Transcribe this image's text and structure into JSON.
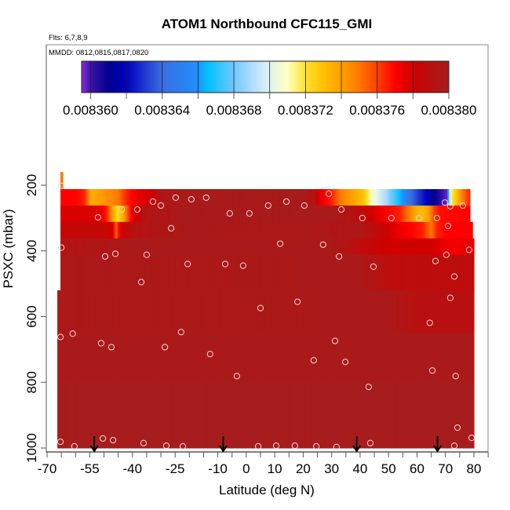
{
  "chart_data": {
    "type": "heatmap",
    "title": "ATOM1 Northbound CFC115_GMI",
    "flights_label": "Flts: 6,7,8,9",
    "dates_label": "MMDD: 0812,0815,0817,0820",
    "xlabel": "Latitude (deg N)",
    "ylabel": "PSXC (mbar)",
    "xlim": [
      -70,
      85
    ],
    "ylim": [
      1000,
      200
    ],
    "y_reversed": true,
    "x_tick_labels": [
      "-70",
      "-55",
      "-40",
      "-25",
      "-10",
      "0",
      "10",
      "20",
      "30",
      "40",
      "50",
      "60",
      "70",
      "80"
    ],
    "x_tick_values": [
      -70,
      -55,
      -40,
      -25,
      -10,
      0,
      10,
      20,
      30,
      40,
      50,
      60,
      70,
      80
    ],
    "x_minor_tick_step": 5,
    "y_tick_labels": [
      "200",
      "400",
      "600",
      "800",
      "1000"
    ],
    "y_tick_values": [
      200,
      400,
      600,
      800,
      1000
    ],
    "colorbar": {
      "range": [
        0.0083595,
        0.00838
      ],
      "tick_labels": [
        "0.008360",
        "0.008364",
        "0.008368",
        "0.008372",
        "0.008376",
        "0.008380"
      ],
      "tick_values": [
        0.00836,
        0.008364,
        0.008368,
        0.008372,
        0.008376,
        0.00838
      ],
      "segment_step": 2e-06,
      "placement": "top-inside"
    },
    "colorscale": [
      [
        0.0083595,
        "#8a2be2"
      ],
      [
        0.00836,
        "#3c14a8"
      ],
      [
        0.008361,
        "#000090"
      ],
      [
        0.008362,
        "#0000c0"
      ],
      [
        0.008364,
        "#3a6ee0"
      ],
      [
        0.008366,
        "#1e90ff"
      ],
      [
        0.0083665,
        "#00bfff"
      ],
      [
        0.008368,
        "#70c8ff"
      ],
      [
        0.008369,
        "#b0dcff"
      ],
      [
        0.00837,
        "#e0f4f0"
      ],
      [
        0.008371,
        "#ffffc0"
      ],
      [
        0.008372,
        "#ffe030"
      ],
      [
        0.008373,
        "#ffc000"
      ],
      [
        0.008374,
        "#ffa000"
      ],
      [
        0.008375,
        "#ff7800"
      ],
      [
        0.008376,
        "#ff4000"
      ],
      [
        0.008377,
        "#ff0000"
      ],
      [
        0.008378,
        "#d00000"
      ],
      [
        0.008379,
        "#b81010"
      ],
      [
        0.00838,
        "#a51e1e"
      ]
    ],
    "curtain_rows": [
      {
        "p_top": 160,
        "p_bottom": 212,
        "profile": [
          [
            -65.3,
            0.008375
          ],
          [
            -64.5,
            0.008375
          ]
        ]
      },
      {
        "p_top": 212,
        "p_bottom": 262,
        "profile": [
          [
            -65.3,
            0.008377
          ],
          [
            -60,
            0.008377
          ],
          [
            -57,
            0.0083765
          ],
          [
            -55.5,
            0.008375
          ],
          [
            -54.5,
            0.0083735
          ],
          [
            -52,
            0.008374
          ],
          [
            -48,
            0.0083745
          ],
          [
            -45,
            0.008375
          ],
          [
            -42,
            0.0083765
          ],
          [
            -38,
            0.0083775
          ],
          [
            -33,
            0.008378
          ],
          [
            -30,
            0.0083795
          ],
          [
            -20,
            0.0083798
          ],
          [
            20,
            0.0083798
          ],
          [
            24,
            0.008379
          ],
          [
            26,
            0.0083775
          ],
          [
            30,
            0.0083765
          ],
          [
            33,
            0.008375
          ],
          [
            37,
            0.008374
          ],
          [
            41,
            0.008373
          ],
          [
            44,
            0.008371
          ],
          [
            46,
            0.00837
          ],
          [
            49,
            0.008369
          ],
          [
            52,
            0.0083675
          ],
          [
            55,
            0.008366
          ],
          [
            58,
            0.008364
          ],
          [
            62,
            0.0083625
          ],
          [
            66,
            0.008361
          ],
          [
            69,
            0.00836
          ],
          [
            70.5,
            0.0083597
          ],
          [
            71,
            0.008367
          ],
          [
            72,
            0.0083715
          ],
          [
            74,
            0.008373
          ],
          [
            76,
            0.008375
          ],
          [
            78.6,
            0.0083765
          ]
        ]
      },
      {
        "p_top": 262,
        "p_bottom": 312,
        "profile": [
          [
            -65.3,
            0.0083778
          ],
          [
            -55,
            0.0083778
          ],
          [
            -51,
            0.0083775
          ],
          [
            -49,
            0.0083765
          ],
          [
            -47,
            0.008374
          ],
          [
            -45.2,
            0.0083721
          ],
          [
            -43.5,
            0.0083735
          ],
          [
            -41,
            0.0083765
          ],
          [
            -39.5,
            0.0083778
          ],
          [
            -36,
            0.0083792
          ],
          [
            -20,
            0.0083798
          ],
          [
            30,
            0.0083798
          ],
          [
            40,
            0.0083788
          ],
          [
            45,
            0.0083778
          ],
          [
            50,
            0.008377
          ],
          [
            54,
            0.0083765
          ],
          [
            57,
            0.008375
          ],
          [
            60,
            0.0083735
          ],
          [
            62,
            0.0083732
          ],
          [
            64,
            0.008374
          ],
          [
            66,
            0.008376
          ],
          [
            68,
            0.0083768
          ],
          [
            78.6,
            0.008377
          ]
        ]
      },
      {
        "p_top": 312,
        "p_bottom": 362,
        "profile": [
          [
            -65.3,
            0.0083785
          ],
          [
            -50,
            0.0083785
          ],
          [
            -47,
            0.008378
          ],
          [
            -46.3,
            0.0083765
          ],
          [
            -45.7,
            0.008375
          ],
          [
            -45,
            0.0083768
          ],
          [
            -43,
            0.0083785
          ],
          [
            -38,
            0.0083792
          ],
          [
            -20,
            0.0083797
          ],
          [
            40,
            0.0083795
          ],
          [
            47,
            0.0083785
          ],
          [
            53,
            0.0083775
          ],
          [
            58,
            0.008377
          ],
          [
            62,
            0.0083765
          ],
          [
            65,
            0.008375
          ],
          [
            67,
            0.0083765
          ],
          [
            70,
            0.008377
          ],
          [
            79.5,
            0.008377
          ]
        ]
      },
      {
        "p_top": 362,
        "p_bottom": 412,
        "profile": [
          [
            -65.3,
            0.0083792
          ],
          [
            -40,
            0.0083797
          ],
          [
            30,
            0.0083797
          ],
          [
            40,
            0.0083788
          ],
          [
            50,
            0.008378
          ],
          [
            65,
            0.008378
          ],
          [
            72,
            0.0083772
          ],
          [
            80,
            0.0083776
          ]
        ]
      },
      {
        "p_top": 412,
        "p_bottom": 520,
        "profile": [
          [
            -65.3,
            0.0083796
          ],
          [
            40,
            0.0083797
          ],
          [
            50,
            0.0083788
          ],
          [
            80,
            0.0083788
          ]
        ]
      },
      {
        "p_top": 520,
        "p_bottom": 650,
        "profile": [
          [
            -66.4,
            0.0083796
          ],
          [
            50,
            0.0083797
          ],
          [
            60,
            0.008379
          ],
          [
            80,
            0.008379
          ]
        ]
      },
      {
        "p_top": 650,
        "p_bottom": 800,
        "profile": [
          [
            -66.4,
            0.0083797
          ],
          [
            80,
            0.0083797
          ]
        ]
      },
      {
        "p_top": 800,
        "p_bottom": 1000,
        "profile": [
          [
            -66.4,
            0.0083799
          ],
          [
            80,
            0.0083799
          ]
        ]
      }
    ],
    "observation_points": [
      [
        -65.0,
        202
      ],
      [
        -52.1,
        298
      ],
      [
        -43.8,
        274
      ],
      [
        -38.3,
        274
      ],
      [
        -32.8,
        250
      ],
      [
        -30.0,
        262
      ],
      [
        -26.4,
        331
      ],
      [
        -24.8,
        238
      ],
      [
        -19.3,
        243
      ],
      [
        -14.1,
        238
      ],
      [
        -5.8,
        286
      ],
      [
        1.1,
        286
      ],
      [
        7.7,
        262
      ],
      [
        14.1,
        250
      ],
      [
        20.4,
        262
      ],
      [
        29.0,
        226
      ],
      [
        33.4,
        274
      ],
      [
        40.8,
        300
      ],
      [
        51.0,
        300
      ],
      [
        60.7,
        300
      ],
      [
        67.0,
        300
      ],
      [
        69.8,
        253
      ],
      [
        71.7,
        264
      ],
      [
        76.1,
        262
      ],
      [
        70.9,
        324
      ],
      [
        -65.0,
        390
      ],
      [
        -49.6,
        417
      ],
      [
        -46.0,
        409
      ],
      [
        -35.0,
        412
      ],
      [
        -36.9,
        495
      ],
      [
        -20.6,
        440
      ],
      [
        -7.4,
        440
      ],
      [
        -1.1,
        445
      ],
      [
        11.9,
        378
      ],
      [
        27.0,
        381
      ],
      [
        32.6,
        417
      ],
      [
        44.7,
        448
      ],
      [
        66.5,
        431
      ],
      [
        70.3,
        412
      ],
      [
        73.1,
        478
      ],
      [
        71.7,
        543
      ],
      [
        78.3,
        397
      ],
      [
        5.0,
        574
      ],
      [
        18.0,
        555
      ],
      [
        64.5,
        619
      ],
      [
        -65.3,
        662
      ],
      [
        -61.0,
        652
      ],
      [
        -51.0,
        681
      ],
      [
        -47.4,
        693
      ],
      [
        -28.6,
        693
      ],
      [
        -22.9,
        647
      ],
      [
        31.2,
        674
      ],
      [
        -12.7,
        714
      ],
      [
        23.7,
        733
      ],
      [
        34.8,
        738
      ],
      [
        -3.3,
        781
      ],
      [
        65.4,
        764
      ],
      [
        73.6,
        781
      ],
      [
        43.0,
        814
      ],
      [
        74.2,
        938
      ],
      [
        -65.3,
        981
      ],
      [
        -60.4,
        995
      ],
      [
        -50.4,
        971
      ],
      [
        -46.8,
        976
      ],
      [
        -36.1,
        985
      ],
      [
        -28.1,
        993
      ],
      [
        -22.3,
        995
      ],
      [
        4.2,
        995
      ],
      [
        10.5,
        993
      ],
      [
        17.1,
        993
      ],
      [
        24.6,
        995
      ],
      [
        31.7,
        997
      ],
      [
        43.6,
        985
      ],
      [
        73.1,
        993
      ],
      [
        79.2,
        969
      ]
    ],
    "flight_markers_lat": [
      -53.4,
      -8.1,
      38.8,
      67.2
    ],
    "grid": false
  }
}
